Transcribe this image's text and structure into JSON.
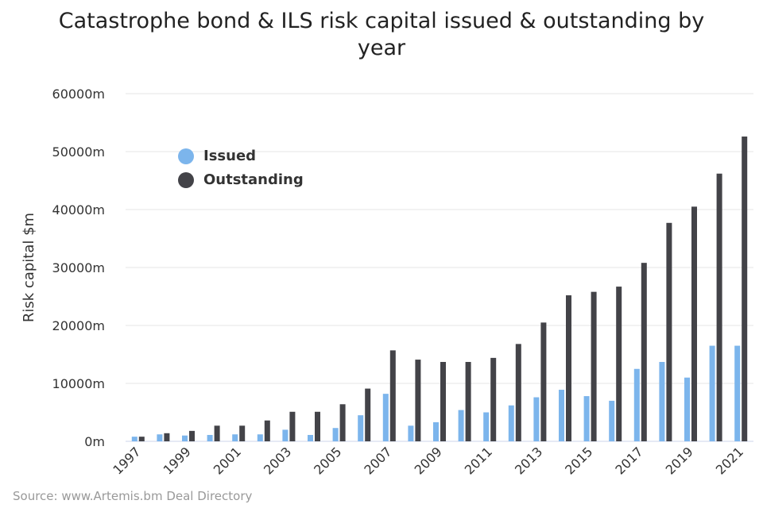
{
  "chart_data": {
    "type": "bar",
    "title": "Catastrophe bond & ILS risk capital issued & outstanding by year",
    "ylabel": "Risk capital $m",
    "xlabel": "",
    "ylim": [
      0,
      60000
    ],
    "y_ticks": [
      0,
      10000,
      20000,
      30000,
      40000,
      50000,
      60000
    ],
    "y_tick_labels": [
      "0m",
      "10000m",
      "20000m",
      "30000m",
      "40000m",
      "50000m",
      "60000m"
    ],
    "categories": [
      "1997",
      "1998",
      "1999",
      "2000",
      "2001",
      "2002",
      "2003",
      "2004",
      "2005",
      "2006",
      "2007",
      "2008",
      "2009",
      "2010",
      "2011",
      "2012",
      "2013",
      "2014",
      "2015",
      "2016",
      "2017",
      "2018",
      "2019",
      "2020",
      "2021"
    ],
    "x_tick_labels": [
      "1997",
      "1999",
      "2001",
      "2003",
      "2005",
      "2007",
      "2009",
      "2011",
      "2013",
      "2015",
      "2017",
      "2019",
      "2021"
    ],
    "series": [
      {
        "name": "Issued",
        "color": "#7cb5ec",
        "values": [
          800,
          1200,
          1000,
          1100,
          1200,
          1200,
          2000,
          1100,
          2300,
          4500,
          8200,
          2700,
          3300,
          5400,
          5000,
          6200,
          7600,
          8900,
          7800,
          7000,
          12500,
          13700,
          11000,
          16500,
          16500
        ]
      },
      {
        "name": "Outstanding",
        "color": "#434348",
        "values": [
          800,
          1400,
          1800,
          2700,
          2700,
          3600,
          5100,
          5100,
          6400,
          9100,
          15700,
          14100,
          13700,
          13700,
          14400,
          16800,
          20500,
          25200,
          25800,
          26700,
          30800,
          37700,
          40500,
          46200,
          52600
        ]
      }
    ],
    "legend_position": "top-left",
    "grid": true
  },
  "source": "Source: www.Artemis.bm Deal Directory"
}
